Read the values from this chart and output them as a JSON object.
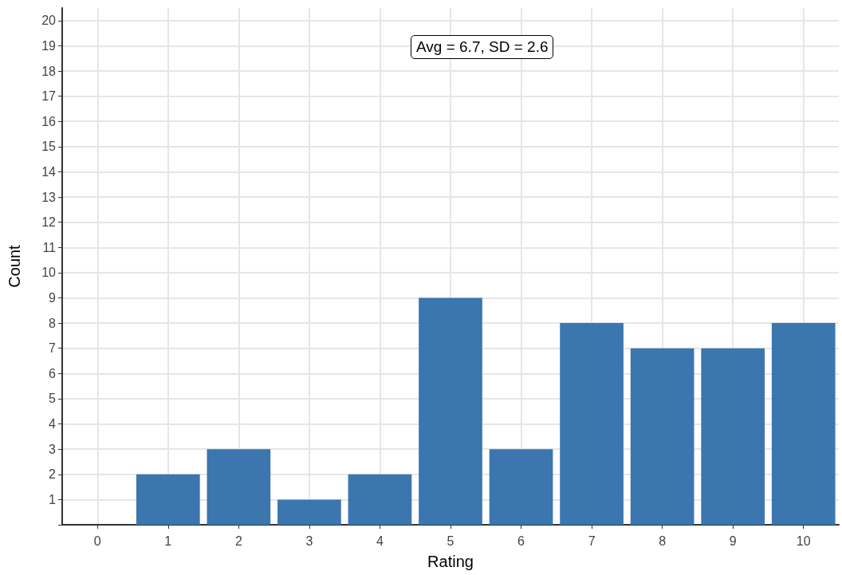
{
  "chart_data": {
    "type": "bar",
    "xlabel": "Rating",
    "ylabel": "Count",
    "categories": [
      "0",
      "1",
      "2",
      "3",
      "4",
      "5",
      "6",
      "7",
      "8",
      "9",
      "10"
    ],
    "values": [
      0,
      2,
      3,
      1,
      2,
      9,
      3,
      8,
      7,
      7,
      8
    ],
    "color": "#3b76af",
    "ylim": [
      0,
      20.5
    ],
    "yticks": [
      {
        "value": 0,
        "label": null
      },
      1,
      2,
      3,
      4,
      5,
      6,
      7,
      8,
      9,
      10,
      11,
      12,
      13,
      14,
      15,
      16,
      17,
      18,
      19,
      20
    ],
    "grid": true,
    "annotations": [
      "Avg = 6.7, SD = 2.6"
    ]
  }
}
